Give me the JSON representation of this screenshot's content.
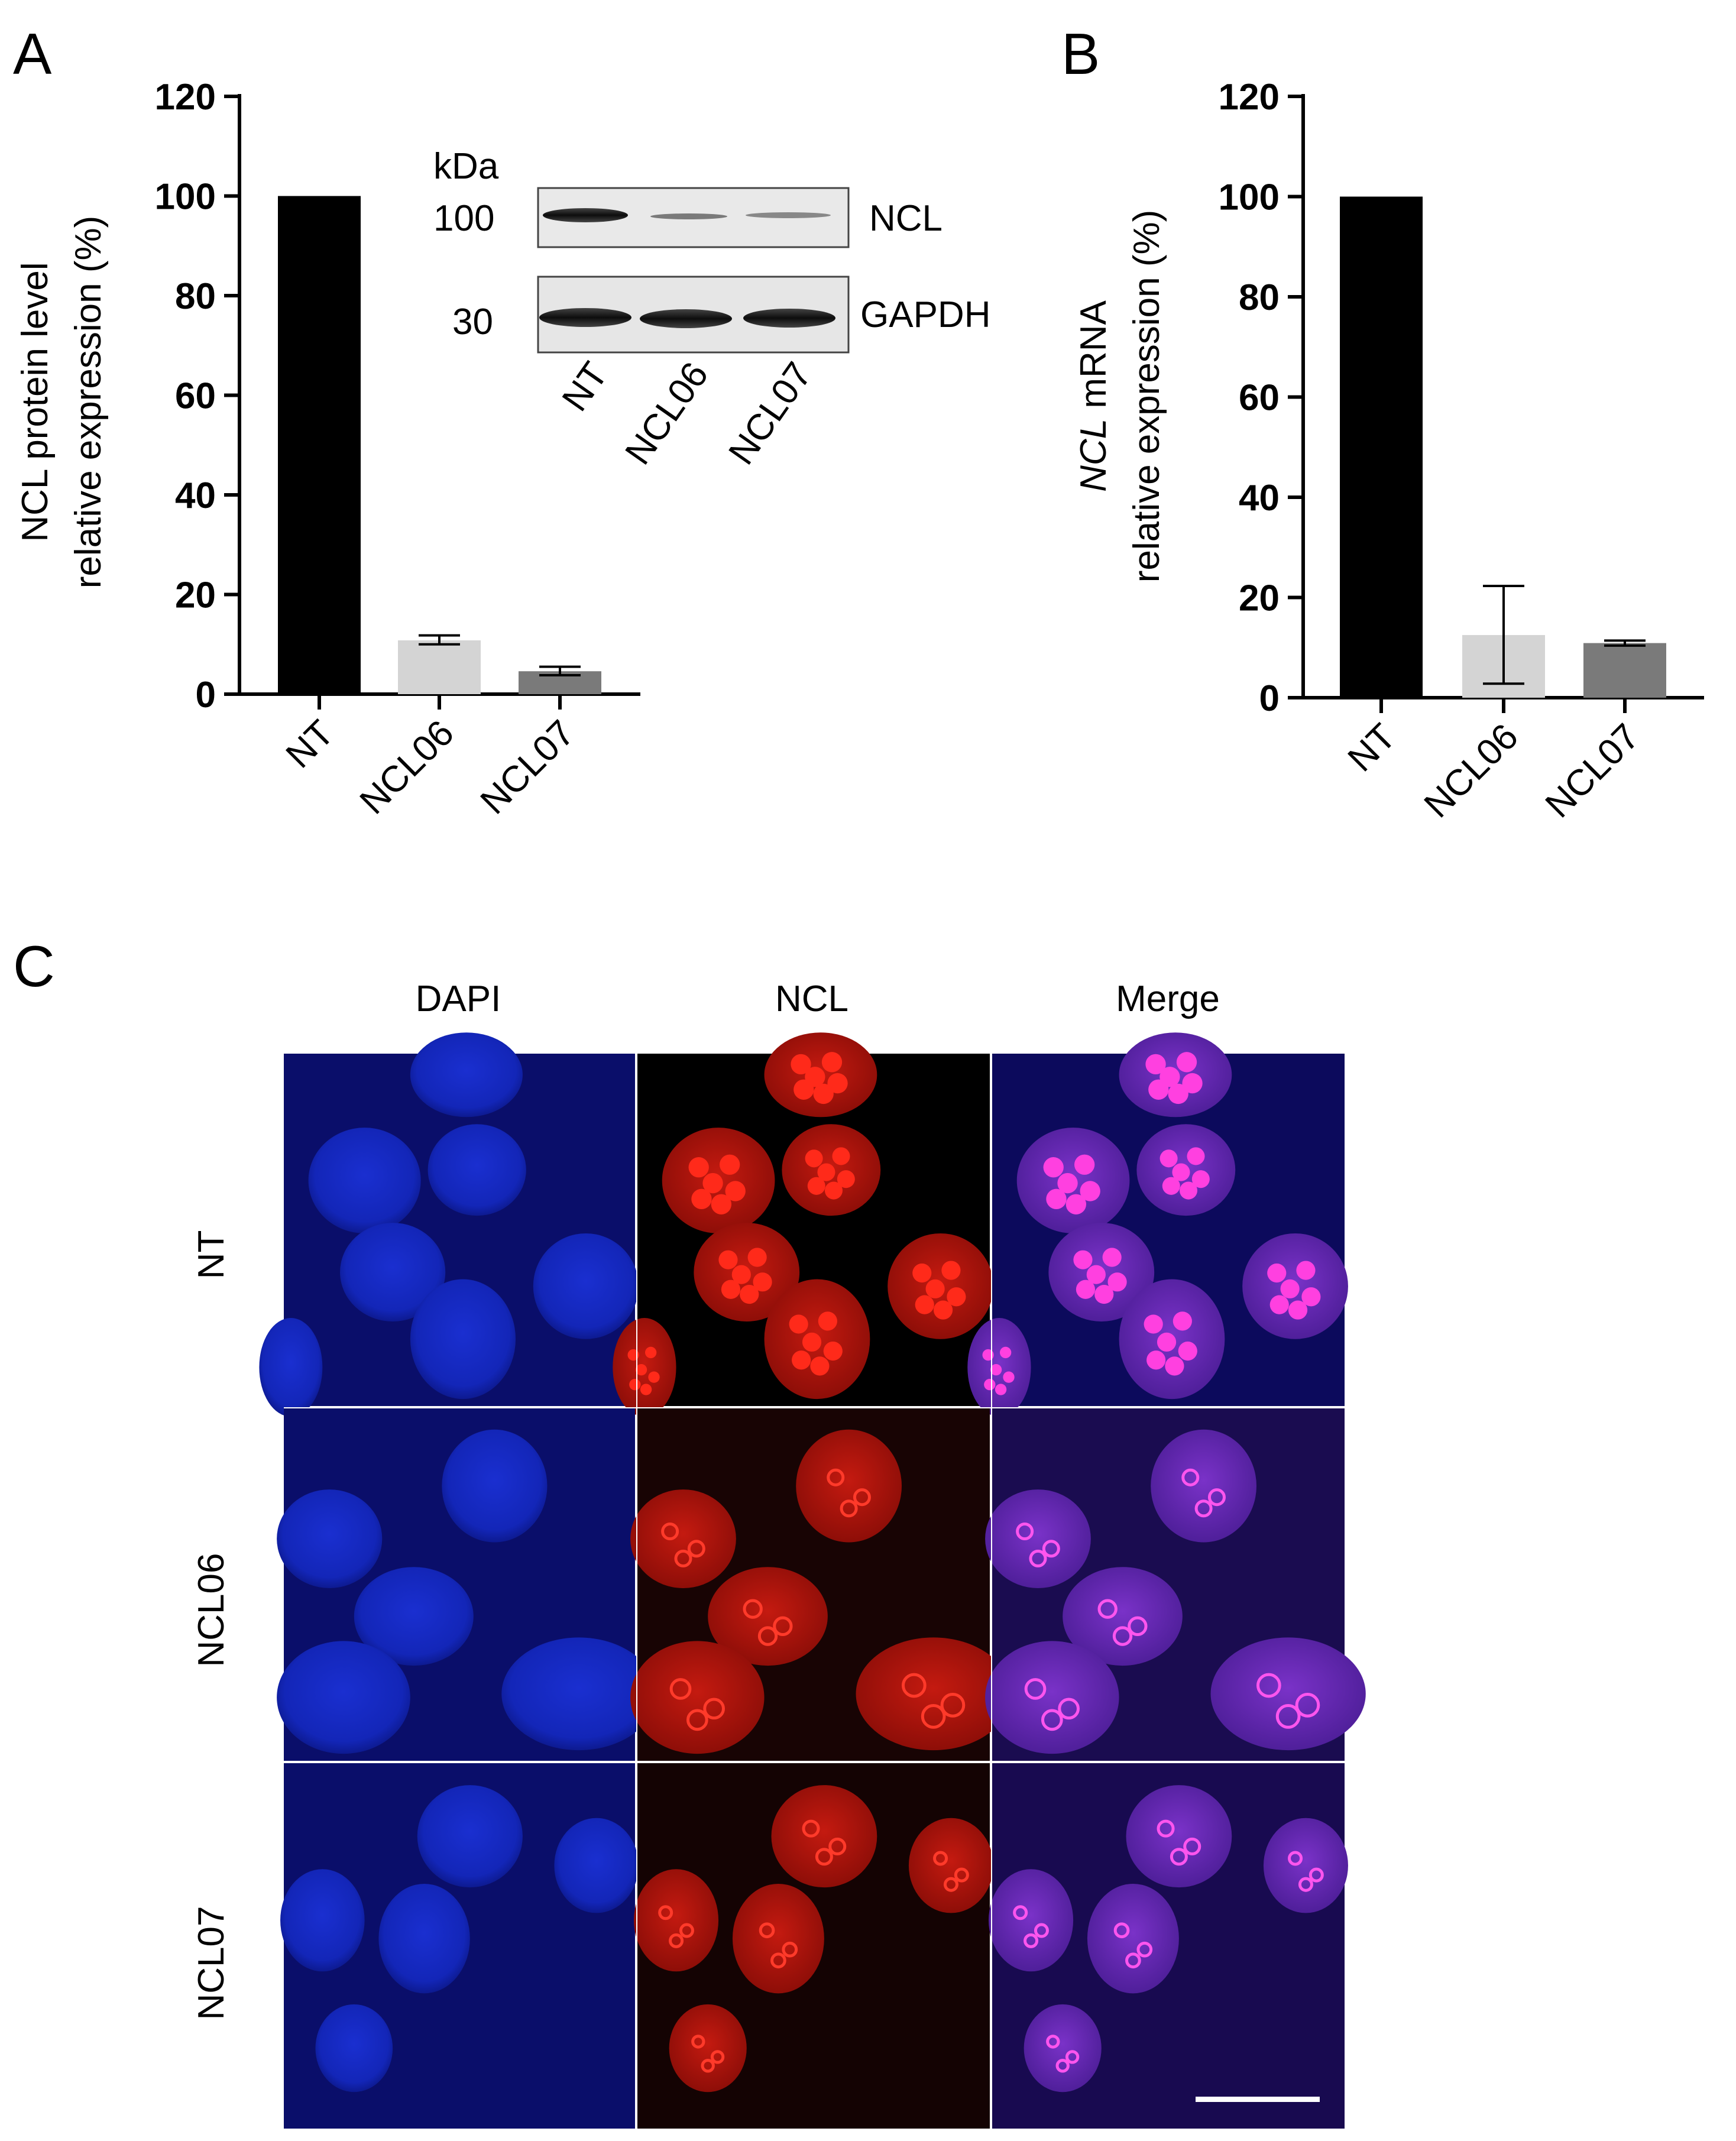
{
  "panels": {
    "a": "A",
    "b": "B",
    "c": "C"
  },
  "chart_data": [
    {
      "type": "bar",
      "panel": "A",
      "ylabel_line1": "NCL protein level",
      "ylabel_line2": "relative expression (%)",
      "ylim": [
        0,
        120
      ],
      "yticks": [
        "0",
        "20",
        "40",
        "60",
        "80",
        "100",
        "120"
      ],
      "categories": [
        "NT",
        "NCL06",
        "NCL07"
      ],
      "values": [
        100,
        10.8,
        4.6
      ],
      "error_low": [
        100,
        10.0,
        3.8
      ],
      "error_high": [
        100,
        11.8,
        5.5
      ],
      "colors": [
        "#000000",
        "#d4d4d4",
        "#7a7a7a"
      ],
      "legend": "none",
      "grid": false
    },
    {
      "type": "bar",
      "panel": "B",
      "ylabel_italic": "NCL",
      "ylabel_line1_rest": " mRNA",
      "ylabel_line2": "relative expression (%)",
      "ylim": [
        0,
        120
      ],
      "yticks": [
        "0",
        "20",
        "40",
        "60",
        "80",
        "100",
        "120"
      ],
      "categories": [
        "NT",
        "NCL06",
        "NCL07"
      ],
      "values": [
        100,
        12.5,
        10.9
      ],
      "error_low": [
        100,
        2.8,
        10.4
      ],
      "error_high": [
        100,
        22.3,
        11.4
      ],
      "colors": [
        "#000000",
        "#d4d4d4",
        "#7a7a7a"
      ],
      "legend": "none",
      "grid": false
    }
  ],
  "blot": {
    "unit": "kDa",
    "markers": [
      "100",
      "30"
    ],
    "bands": [
      "NCL",
      "GAPDH"
    ],
    "lanes": [
      "NT",
      "NCL06",
      "NCL07"
    ]
  },
  "micrographs": {
    "columns": [
      "DAPI",
      "NCL",
      "Merge"
    ],
    "rows": [
      "NT",
      "NCL06",
      "NCL07"
    ]
  }
}
